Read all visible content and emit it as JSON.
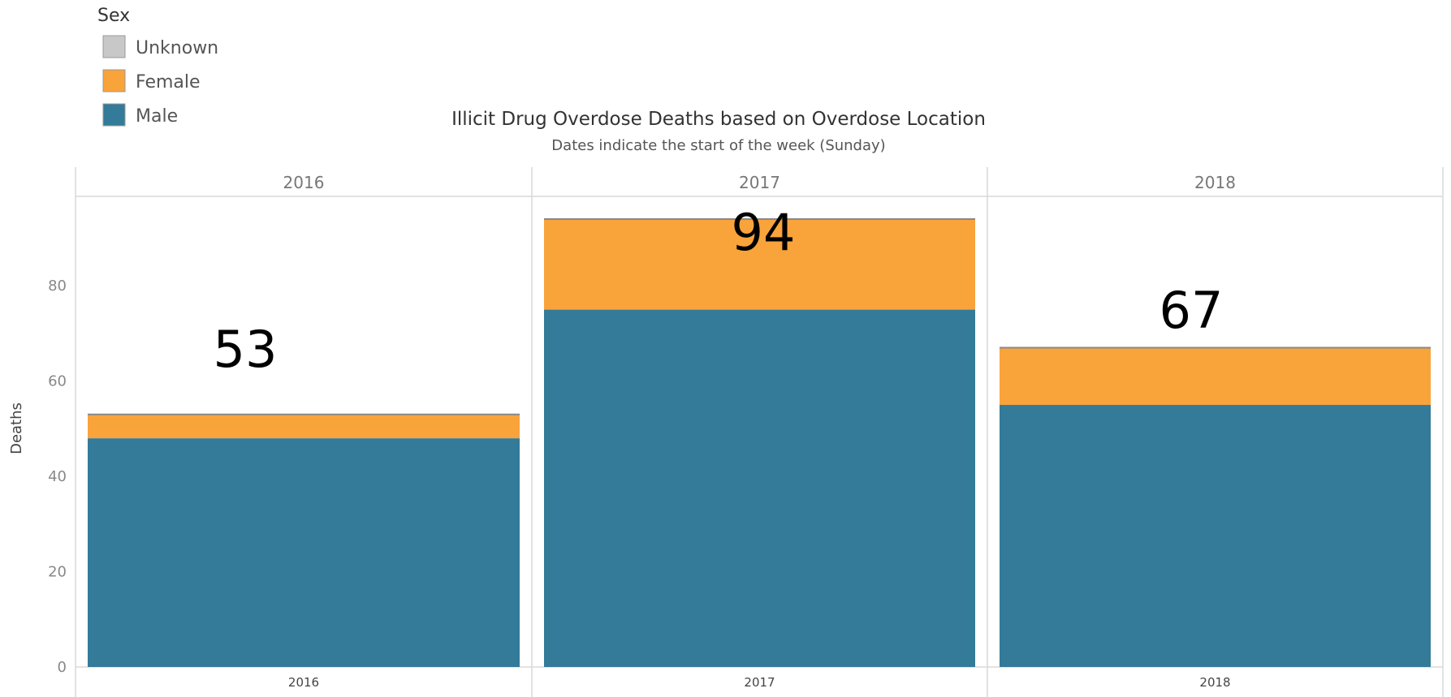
{
  "chart_data": {
    "type": "bar",
    "stacked": true,
    "title": "Illicit Drug Overdose Deaths based on Overdose Location",
    "subtitle": "Dates indicate the start of the week (Sunday)",
    "ylabel": "Deaths",
    "ylim": [
      0,
      94
    ],
    "yticks": [
      0,
      20,
      40,
      60,
      80
    ],
    "categories": [
      "2016",
      "2017",
      "2018"
    ],
    "panel_headers": [
      "2016",
      "2017",
      "2018"
    ],
    "series": [
      {
        "name": "Male",
        "color": "#337b98",
        "values": [
          48,
          75,
          55
        ]
      },
      {
        "name": "Female",
        "color": "#f9a33b",
        "values": [
          5,
          19,
          12
        ]
      },
      {
        "name": "Unknown",
        "color": "#c8c8c8",
        "values": [
          0,
          0,
          0
        ]
      }
    ],
    "totals": [
      "53",
      "94",
      "67"
    ],
    "legend": {
      "title": "Sex",
      "placement": "top-left",
      "items": [
        {
          "label": "Unknown",
          "color": "#c8c8c8"
        },
        {
          "label": "Female",
          "color": "#f9a33b"
        },
        {
          "label": "Male",
          "color": "#337b98"
        }
      ]
    },
    "grid": false
  }
}
